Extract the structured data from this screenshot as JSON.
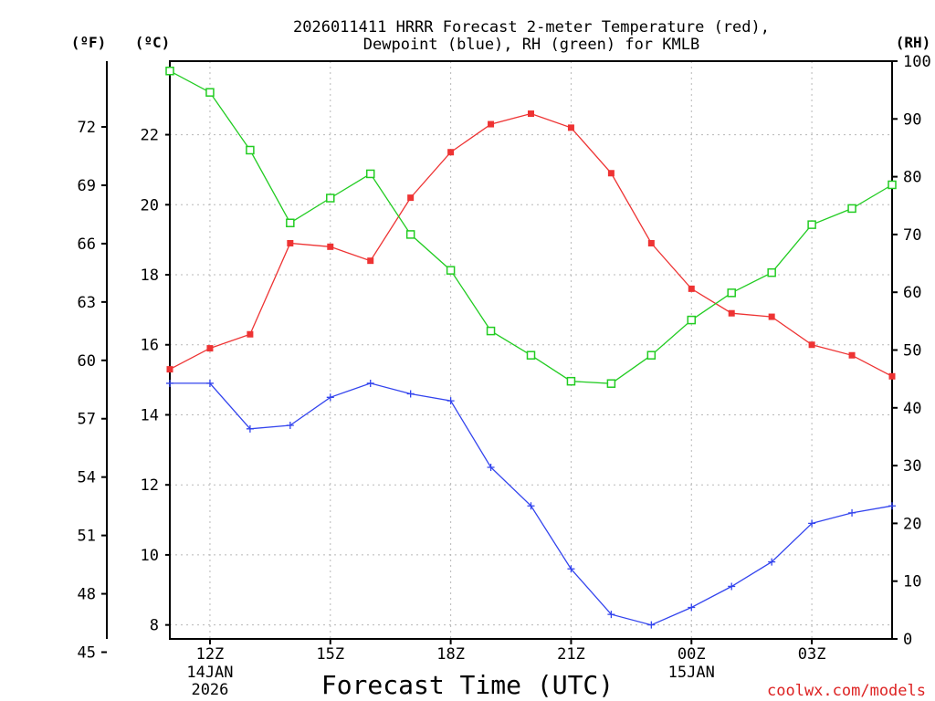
{
  "chart_data": {
    "type": "line",
    "title_line1": "2026011411 HRRR Forecast 2-meter Temperature (red),",
    "title_line2": "Dewpoint (blue), RH (green) for KMLB",
    "xlabel": "Forecast Time (UTC)",
    "watermark": "coolwx.com/models",
    "axis_unit_f": "(ºF)",
    "axis_unit_c": "(ºC)",
    "axis_unit_rh": "(RH)",
    "x_hours": [
      11,
      12,
      13,
      14,
      15,
      16,
      17,
      18,
      19,
      20,
      21,
      22,
      23,
      24,
      25,
      26,
      27,
      28,
      29
    ],
    "xlim": [
      11,
      29
    ],
    "x_ticks": [
      {
        "hour": 12,
        "label": "12Z",
        "sub1": "14JAN",
        "sub2": "2026"
      },
      {
        "hour": 15,
        "label": "15Z",
        "sub1": "",
        "sub2": ""
      },
      {
        "hour": 18,
        "label": "18Z",
        "sub1": "",
        "sub2": ""
      },
      {
        "hour": 21,
        "label": "21Z",
        "sub1": "",
        "sub2": ""
      },
      {
        "hour": 24,
        "label": "00Z",
        "sub1": "15JAN",
        "sub2": ""
      },
      {
        "hour": 27,
        "label": "03Z",
        "sub1": "",
        "sub2": ""
      }
    ],
    "c_ylim": [
      7.6,
      24.1
    ],
    "c_ticks": [
      8,
      10,
      12,
      14,
      16,
      18,
      20,
      22
    ],
    "f_ticks": [
      45,
      48,
      51,
      54,
      57,
      60,
      63,
      66,
      69,
      72
    ],
    "rh_ylim": [
      0,
      100
    ],
    "rh_ticks": [
      0,
      10,
      20,
      30,
      40,
      50,
      60,
      70,
      80,
      90,
      100
    ],
    "series": [
      {
        "name": "2-meter Temperature",
        "color": "#ee3333",
        "axis": "c",
        "marker": "filled-square",
        "values": [
          15.3,
          15.9,
          16.3,
          18.9,
          18.8,
          18.4,
          20.2,
          21.5,
          22.3,
          22.6,
          22.2,
          20.9,
          18.9,
          17.6,
          16.9,
          16.8,
          16.0,
          15.7,
          15.1
        ]
      },
      {
        "name": "Dewpoint",
        "color": "#3344ee",
        "axis": "c",
        "marker": "plus",
        "values": [
          14.9,
          14.9,
          13.6,
          13.7,
          14.5,
          14.9,
          14.6,
          14.4,
          12.5,
          11.4,
          9.6,
          8.3,
          8.0,
          8.5,
          9.1,
          9.8,
          10.9,
          11.2,
          11.4
        ]
      },
      {
        "name": "RH",
        "color": "#22cc22",
        "axis": "rh",
        "marker": "open-square",
        "values": [
          98.3,
          94.6,
          84.6,
          72.0,
          76.3,
          80.5,
          70.0,
          63.8,
          53.3,
          49.1,
          44.6,
          44.2,
          49.1,
          55.2,
          59.9,
          63.4,
          71.7,
          74.5,
          78.6
        ]
      }
    ]
  }
}
